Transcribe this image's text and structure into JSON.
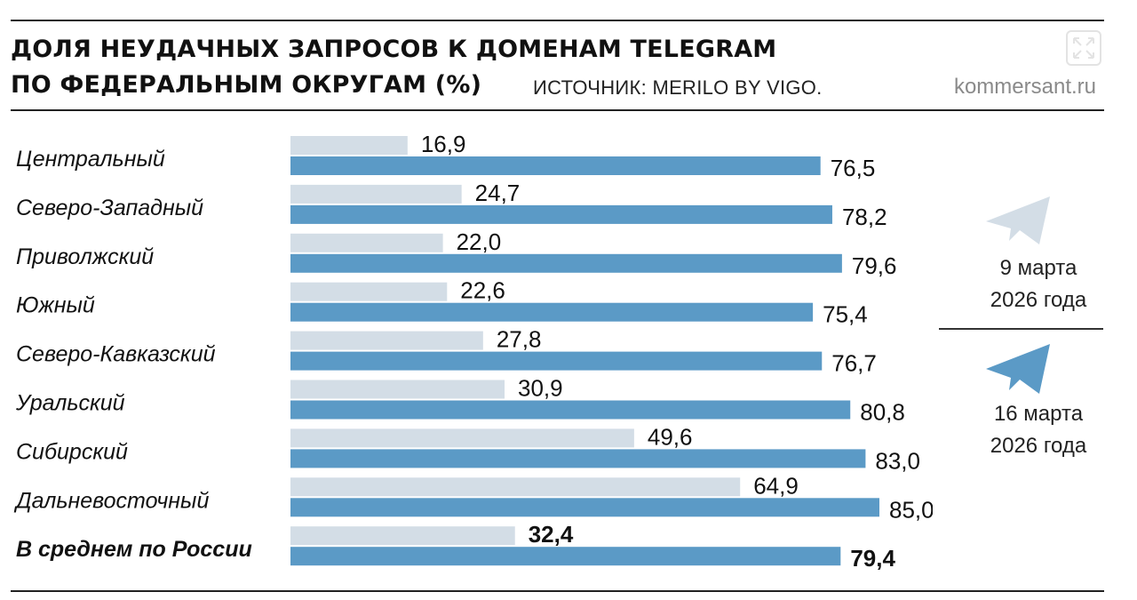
{
  "header": {
    "title_line1": "ДОЛЯ НЕУДАЧНЫХ ЗАПРОСОВ К ДОМЕНАМ TELEGRAM",
    "title_line2": "ПО ФЕДЕРАЛЬНЫМ ОКРУГАМ (%)",
    "source": "ИСТОЧНИК: MERILO BY VIGO.",
    "site": "kommersant.ru"
  },
  "legend": {
    "series1_line1": "9 марта",
    "series1_line2": "2026 года",
    "series2_line1": "16 марта",
    "series2_line2": "2026 года"
  },
  "colors": {
    "series1": "#d3dde6",
    "series2": "#5b9ac6",
    "rule": "#222222"
  },
  "chart_data": {
    "type": "bar",
    "orientation": "horizontal",
    "title": "ДОЛЯ НЕУДАЧНЫХ ЗАПРОСОВ К ДОМЕНАМ TELEGRAM ПО ФЕДЕРАЛЬНЫМ ОКРУГАМ (%)",
    "categories": [
      "Центральный",
      "Северо-Западный",
      "Приволжский",
      "Южный",
      "Северо-Кавказский",
      "Уральский",
      "Сибирский",
      "Дальневосточный",
      "В среднем по России"
    ],
    "series": [
      {
        "name": "9 марта 2026 года",
        "values": [
          16.9,
          24.7,
          22.0,
          22.6,
          27.8,
          30.9,
          49.6,
          64.9,
          32.4
        ],
        "labels": [
          "16,9",
          "24,7",
          "22,0",
          "22,6",
          "27,8",
          "30,9",
          "49,6",
          "64,9",
          "32,4"
        ]
      },
      {
        "name": "16 марта 2026 года",
        "values": [
          76.5,
          78.2,
          79.6,
          75.4,
          76.7,
          80.8,
          83.0,
          85.0,
          79.4
        ],
        "labels": [
          "76,5",
          "78,2",
          "79,6",
          "75,4",
          "76,7",
          "80,8",
          "83,0",
          "85,0",
          "79,4"
        ]
      }
    ],
    "xlim": [
      0,
      85
    ],
    "grid": false,
    "legend_position": "right",
    "emphasized_category": "В среднем по России"
  }
}
